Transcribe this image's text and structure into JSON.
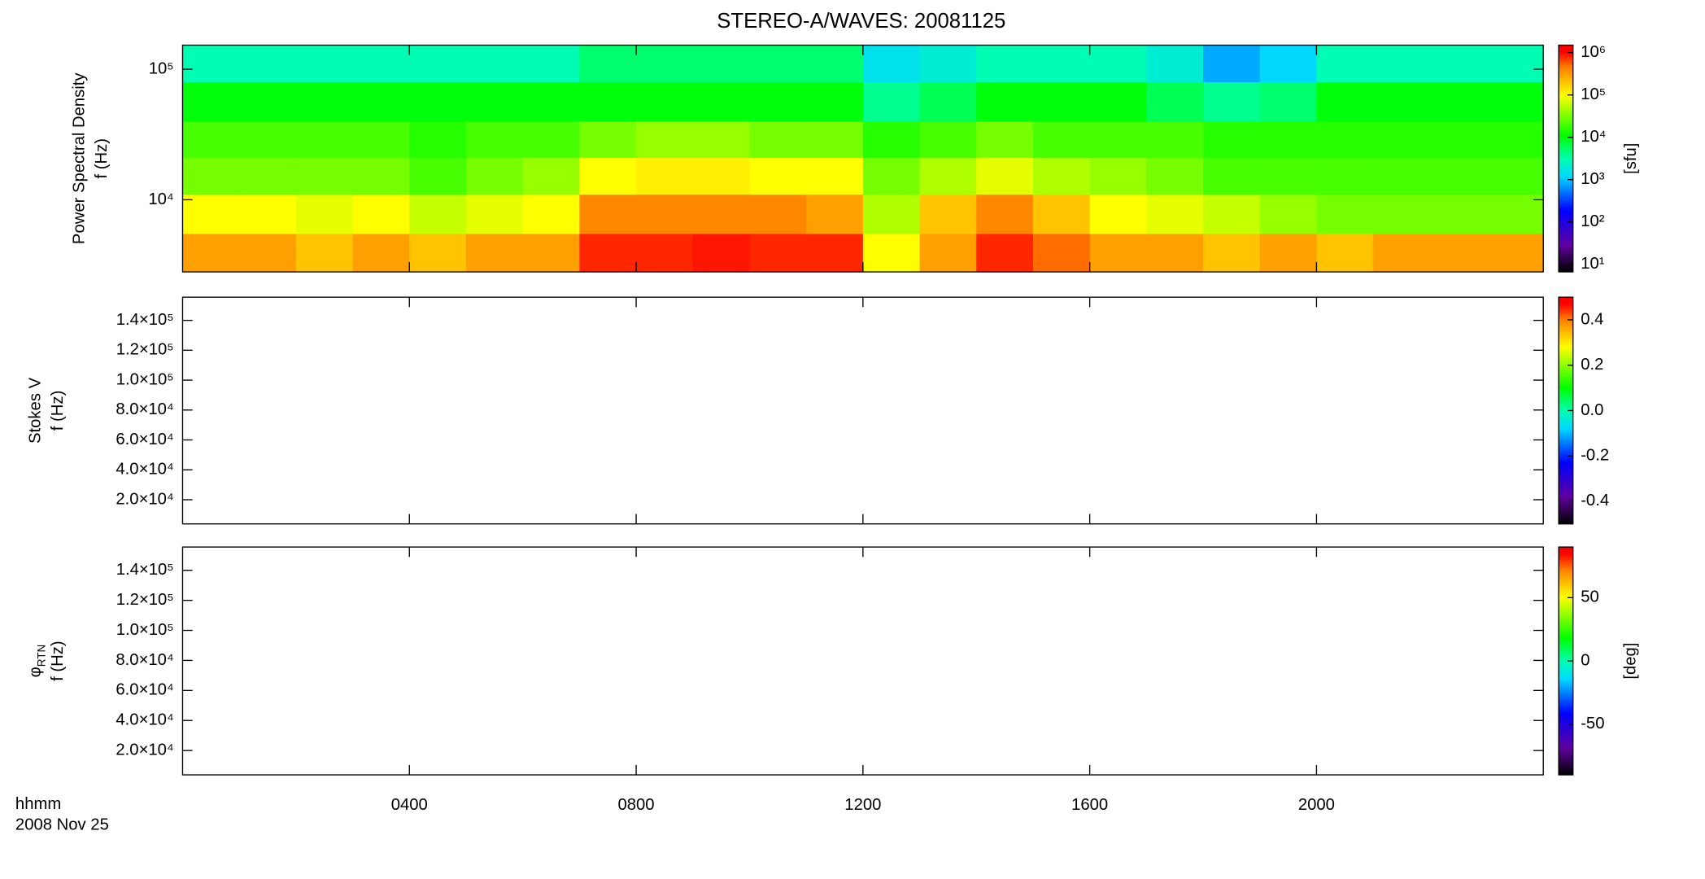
{
  "chart_data": [
    {
      "type": "heatmap",
      "title": "STEREO-A/WAVES: 20081125",
      "ylabel": "Power Spectral Density",
      "ylabel2": "f (Hz)",
      "ylog": true,
      "ylim": [
        2800,
        153000
      ],
      "yticks": [
        {
          "value": 10000,
          "label": "10⁴"
        },
        {
          "value": 100000,
          "label": "10⁵"
        }
      ],
      "x_bins": [
        0,
        1,
        2,
        3,
        4,
        5,
        6,
        7,
        8,
        9,
        10,
        11,
        12,
        13,
        14,
        15,
        16,
        17,
        18,
        19,
        20,
        21,
        22,
        23,
        24
      ],
      "y_bins": [
        2800,
        5500,
        11000,
        21000,
        40000,
        80000,
        153000
      ],
      "z": [
        [
          300000,
          300000,
          200000,
          300000,
          200000,
          300000,
          300000,
          800000,
          800000,
          900000,
          800000,
          800000,
          100000,
          300000,
          800000,
          500000,
          300000,
          300000,
          200000,
          300000,
          200000,
          300000,
          300000,
          300000
        ],
        [
          100000,
          100000,
          80000,
          100000,
          60000,
          80000,
          100000,
          400000,
          400000,
          400000,
          400000,
          300000,
          50000,
          200000,
          400000,
          200000,
          100000,
          80000,
          60000,
          40000,
          30000,
          30000,
          30000,
          30000
        ],
        [
          30000,
          30000,
          30000,
          30000,
          20000,
          30000,
          40000,
          100000,
          120000,
          120000,
          100000,
          100000,
          30000,
          50000,
          80000,
          50000,
          40000,
          30000,
          20000,
          20000,
          20000,
          20000,
          20000,
          20000
        ],
        [
          20000,
          20000,
          20000,
          20000,
          15000,
          20000,
          20000,
          30000,
          40000,
          40000,
          30000,
          30000,
          15000,
          20000,
          30000,
          20000,
          20000,
          20000,
          15000,
          15000,
          15000,
          15000,
          15000,
          15000
        ],
        [
          10000,
          10000,
          10000,
          10000,
          10000,
          10000,
          10000,
          10000,
          10000,
          10000,
          10000,
          10000,
          4000,
          6000,
          10000,
          10000,
          10000,
          6000,
          4000,
          5000,
          10000,
          10000,
          10000,
          10000
        ],
        [
          3000,
          3000,
          3000,
          3000,
          3000,
          3000,
          3000,
          5000,
          5000,
          5000,
          5000,
          5000,
          1500,
          2000,
          3000,
          3000,
          3000,
          2000,
          800,
          1200,
          3000,
          3000,
          3000,
          3000
        ]
      ],
      "zlog": true,
      "zlim": [
        6.6,
        1500000
      ],
      "zticks": [
        {
          "value": 10,
          "label": "10¹"
        },
        {
          "value": 100,
          "label": "10²"
        },
        {
          "value": 1000,
          "label": "10³"
        },
        {
          "value": 10000,
          "label": "10⁴"
        },
        {
          "value": 100000,
          "label": "10⁵"
        },
        {
          "value": 1000000,
          "label": "10⁶"
        }
      ],
      "zlabel": "[sfu]"
    },
    {
      "type": "heatmap",
      "ylabel": "Stokes V",
      "ylabel2": "f (Hz)",
      "ylim": [
        3800,
        155500
      ],
      "yticks": [
        {
          "value": 20000,
          "label": "2.0×10⁴"
        },
        {
          "value": 40000,
          "label": "4.0×10⁴"
        },
        {
          "value": 60000,
          "label": "6.0×10⁴"
        },
        {
          "value": 80000,
          "label": "8.0×10⁴"
        },
        {
          "value": 100000,
          "label": "1.0×10⁵"
        },
        {
          "value": 120000,
          "label": "1.2×10⁵"
        },
        {
          "value": 140000,
          "label": "1.4×10⁵"
        }
      ],
      "zlim": [
        -0.5,
        0.5
      ],
      "zticks": [
        -0.4,
        -0.2,
        {
          "value": 0,
          "label": "0.0"
        },
        0.2,
        0.4
      ]
    },
    {
      "type": "heatmap",
      "ylabel": "φ",
      "ylabel_sub": "RTN",
      "ylabel2": "f (Hz)",
      "ylim": [
        3800,
        155500
      ],
      "yticks": [
        {
          "value": 20000,
          "label": "2.0×10⁴"
        },
        {
          "value": 40000,
          "label": "4.0×10⁴"
        },
        {
          "value": 60000,
          "label": "6.0×10⁴"
        },
        {
          "value": 80000,
          "label": "8.0×10⁴"
        },
        {
          "value": 100000,
          "label": "1.0×10⁵"
        },
        {
          "value": 120000,
          "label": "1.2×10⁵"
        },
        {
          "value": 140000,
          "label": "1.4×10⁵"
        }
      ],
      "zlim": [
        -90,
        90
      ],
      "zticks": [
        -50,
        0,
        50
      ],
      "zlabel": "[deg]",
      "xlim": [
        0,
        24
      ],
      "xlabel": "hhmm",
      "xlabel2": "2008 Nov 25",
      "xticks": [
        {
          "value": 4,
          "label": "0400"
        },
        {
          "value": 8,
          "label": "0800"
        },
        {
          "value": 12,
          "label": "1200"
        },
        {
          "value": 16,
          "label": "1600"
        },
        {
          "value": 20,
          "label": "2000"
        }
      ]
    }
  ]
}
